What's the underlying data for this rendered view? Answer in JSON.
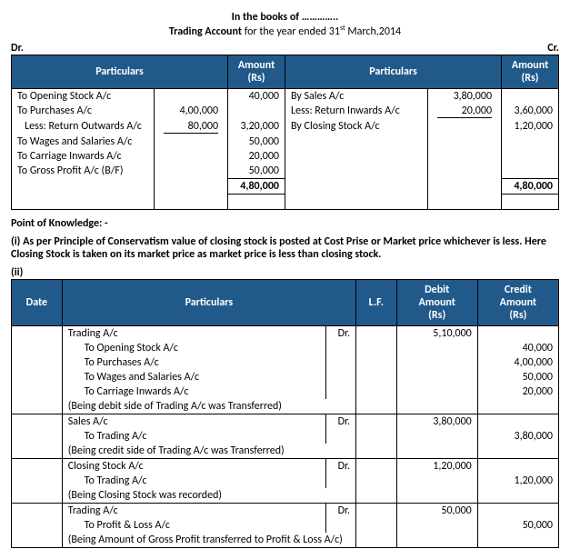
{
  "header": {
    "line1": "In the books of …………..",
    "line2_bold": "Trading Account",
    "line2_rest_a": " for the year ended 31",
    "line2_sup": "st",
    "line2_rest_b": " March,2014",
    "dr": "Dr.",
    "cr": "Cr."
  },
  "trading": {
    "cols": {
      "particulars": "Particulars",
      "amount": "Amount\n(Rs)"
    },
    "debit": [
      {
        "label": "To Opening Stock A/c",
        "sub": "",
        "amount": "40,000"
      },
      {
        "label": "To Purchases A/c",
        "sub": "4,00,000",
        "amount": ""
      },
      {
        "label": "   Less: Return Outwards A/c",
        "sub": "80,000",
        "amount": "3,20,000",
        "underline": true
      },
      {
        "label": "To Wages and Salaries A/c",
        "sub": "",
        "amount": "50,000"
      },
      {
        "label": "To Carriage Inwards A/c",
        "sub": "",
        "amount": "20,000"
      },
      {
        "label": "To Gross Profit A/c (B/F)",
        "sub": "",
        "amount": "50,000"
      }
    ],
    "debit_total": "4,80,000",
    "credit": [
      {
        "label": "By Sales A/c",
        "sub": "3,80,000",
        "amount": ""
      },
      {
        "label": "Less: Return Inwards A/c",
        "sub": "20,000",
        "amount": "3,60,000",
        "underline": true
      },
      {
        "label": "By Closing Stock A/c",
        "sub": "",
        "amount": "1,20,000"
      },
      {
        "label": "",
        "sub": "",
        "amount": ""
      },
      {
        "label": "",
        "sub": "",
        "amount": ""
      },
      {
        "label": "",
        "sub": "",
        "amount": ""
      }
    ],
    "credit_total": "4,80,000"
  },
  "pok": "Point of Knowledge: -",
  "note_i": "(i) As per Principle of Conservatism value of closing stock is posted at Cost Prise or Market price whichever is less. Here Closing Stock is taken on its market price as market price is less than closing stock.",
  "note_ii": "(ii)",
  "journal": {
    "cols": {
      "date": "Date",
      "particulars": "Particulars",
      "lf": "L.F.",
      "debit": "Debit\nAmount\n(Rs)",
      "credit": "Credit\nAmount\n(Rs)"
    },
    "entries": [
      {
        "main": "Trading A/c",
        "dr": "Dr.",
        "debit": "5,10,000",
        "lines": [
          {
            "t": "To Opening Stock A/c",
            "credit": "40,000"
          },
          {
            "t": "To Purchases A/c",
            "credit": "4,00,000"
          },
          {
            "t": "To Wages and Salaries A/c",
            "credit": "50,000"
          },
          {
            "t": "To Carriage Inwards A/c",
            "credit": "20,000"
          }
        ],
        "narration": "(Being debit side of Trading A/c was Transferred)"
      },
      {
        "main": "Sales A/c",
        "dr": "Dr.",
        "debit": "3,80,000",
        "lines": [
          {
            "t": "To Trading A/c",
            "credit": "3,80,000"
          }
        ],
        "narration": "(Being credit side of Trading A/c was Transferred)"
      },
      {
        "main": "Closing Stock A/c",
        "dr": "Dr.",
        "debit": "1,20,000",
        "lines": [
          {
            "t": "To Trading A/c",
            "credit": "1,20,000"
          }
        ],
        "narration": "(Being Closing Stock was recorded)"
      },
      {
        "main": "Trading A/c",
        "dr": "Dr.",
        "debit": "50,000",
        "lines": [
          {
            "t": "To Profit & Loss A/c",
            "credit": "50,000"
          }
        ],
        "narration": "(Being Amount of Gross Profit transferred to Profit & Loss A/c)"
      }
    ]
  }
}
